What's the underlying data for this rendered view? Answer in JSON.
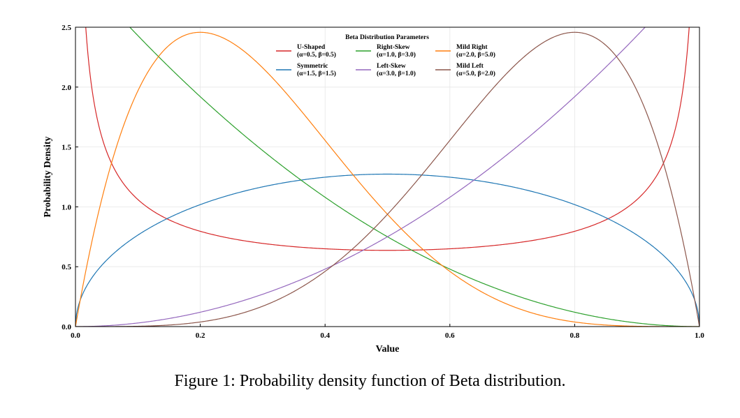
{
  "caption": "Figure 1: Probability density function of Beta distribution.",
  "chart_data": {
    "type": "line",
    "xlabel": "Value",
    "ylabel": "Probability Density",
    "xlim": [
      0.0,
      1.0
    ],
    "ylim": [
      0.0,
      2.5
    ],
    "xticks": [
      "0.0",
      "0.2",
      "0.4",
      "0.6",
      "0.8",
      "1.0"
    ],
    "yticks": [
      "0.0",
      "0.5",
      "1.0",
      "1.5",
      "2.0",
      "2.5"
    ],
    "grid": true,
    "legend": {
      "title": "Beta Distribution Parameters",
      "placement": "top-center",
      "columns": 3
    },
    "series": [
      {
        "name": "U-Shaped",
        "params": "(α=0.5, β=0.5)",
        "alpha": 0.5,
        "beta": 0.5,
        "color": "#d62728"
      },
      {
        "name": "Symmetric",
        "params": "(α=1.5, β=1.5)",
        "alpha": 1.5,
        "beta": 1.5,
        "color": "#1f77b4"
      },
      {
        "name": "Right-Skew",
        "params": "(α=1.0, β=3.0)",
        "alpha": 1.0,
        "beta": 3.0,
        "color": "#2ca02c"
      },
      {
        "name": "Left-Skew",
        "params": "(α=3.0, β=1.0)",
        "alpha": 3.0,
        "beta": 1.0,
        "color": "#9467bd"
      },
      {
        "name": "Mild Right",
        "params": "(α=2.0, β=5.0)",
        "alpha": 2.0,
        "beta": 5.0,
        "color": "#ff7f0e"
      },
      {
        "name": "Mild Left",
        "params": "(α=5.0, β=2.0)",
        "alpha": 5.0,
        "beta": 2.0,
        "color": "#8c564b"
      }
    ]
  }
}
